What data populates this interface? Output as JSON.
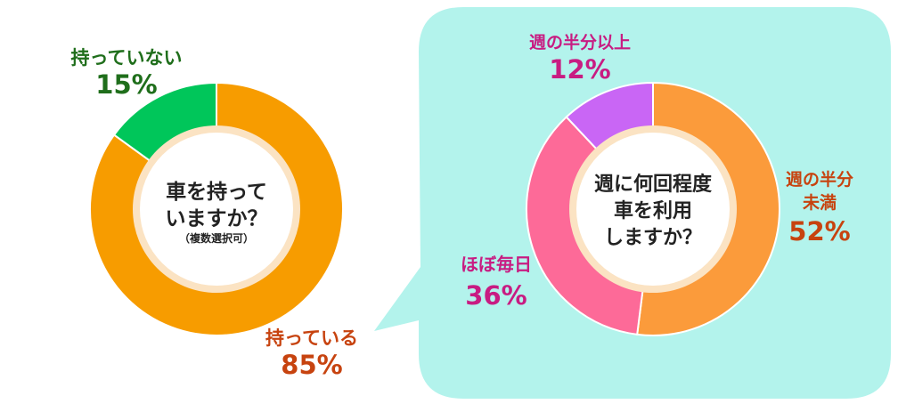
{
  "chart_data": [
    {
      "type": "pie",
      "title_lines": [
        "車を持って",
        "いますか？"
      ],
      "subtitle": "（複数選択可）",
      "categories": [
        "持っている",
        "持っていない"
      ],
      "values": [
        85,
        15
      ],
      "value_labels": [
        "85%",
        "15%"
      ],
      "colors": [
        "#f79c00",
        "#00c65a"
      ]
    },
    {
      "type": "pie",
      "title_lines": [
        "週に何回程度",
        "車を利用",
        "しますか？"
      ],
      "categories": [
        "週の半分未満",
        "ほぼ毎日",
        "週の半分以上"
      ],
      "category_lines": [
        [
          "週の半分",
          "未満"
        ],
        [
          "ほぼ毎日"
        ],
        [
          "週の半分以上"
        ]
      ],
      "values": [
        52,
        36,
        12
      ],
      "value_labels": [
        "52%",
        "36%",
        "12%"
      ],
      "colors": [
        "#fb9b3b",
        "#fd6a98",
        "#c966f5"
      ]
    }
  ],
  "label_colors": {
    "owned": "#c7430f",
    "not_owned": "#1f6e1b",
    "pink_purple": "#c81c82",
    "orange": "#c7430f"
  },
  "panel_color": "#b3f3ec"
}
